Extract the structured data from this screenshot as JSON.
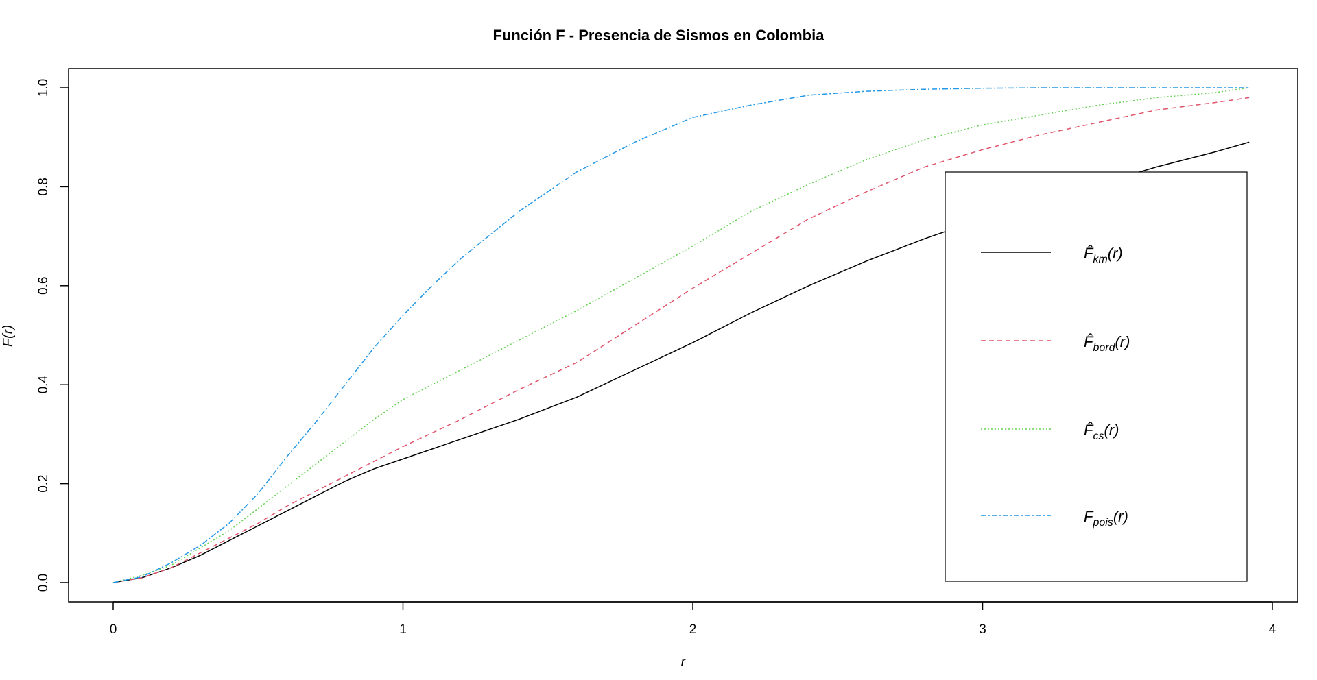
{
  "chart_data": {
    "type": "line",
    "title": "Función F - Presencia de Sismos en Colombia",
    "xlabel": "r",
    "ylabel": "F(r)",
    "xlim": [
      0,
      4
    ],
    "ylim": [
      0,
      1
    ],
    "x_ticks": [
      "0",
      "1",
      "2",
      "3",
      "4"
    ],
    "y_ticks": [
      "0.0",
      "0.2",
      "0.4",
      "0.6",
      "0.8",
      "1.0"
    ],
    "grid": false,
    "legend_position": "bottom-right",
    "series": [
      {
        "id": "km",
        "name": "F̂km(r)",
        "color": "#000000",
        "linestyle": "solid",
        "legend": {
          "base": "F̂",
          "sub": "km",
          "arg": "(r)"
        },
        "x": [
          0,
          0.1,
          0.2,
          0.3,
          0.4,
          0.5,
          0.6,
          0.7,
          0.8,
          0.9,
          1.0,
          1.2,
          1.4,
          1.6,
          1.8,
          2.0,
          2.2,
          2.4,
          2.6,
          2.8,
          3.0,
          3.2,
          3.4,
          3.6,
          3.8,
          3.92
        ],
        "y": [
          0,
          0.01,
          0.03,
          0.055,
          0.085,
          0.115,
          0.145,
          0.175,
          0.205,
          0.23,
          0.25,
          0.29,
          0.33,
          0.375,
          0.43,
          0.485,
          0.545,
          0.6,
          0.65,
          0.695,
          0.735,
          0.77,
          0.805,
          0.84,
          0.87,
          0.89
        ]
      },
      {
        "id": "bord",
        "name": "F̂bord(r)",
        "color": "#df536b",
        "linestyle": "dashed",
        "legend": {
          "base": "F̂",
          "sub": "bord",
          "arg": "(r)"
        },
        "x": [
          0,
          0.1,
          0.2,
          0.3,
          0.4,
          0.5,
          0.6,
          0.7,
          0.8,
          0.9,
          1.0,
          1.2,
          1.4,
          1.6,
          1.8,
          2.0,
          2.2,
          2.4,
          2.6,
          2.8,
          3.0,
          3.2,
          3.4,
          3.6,
          3.8,
          3.92
        ],
        "y": [
          0,
          0.01,
          0.03,
          0.06,
          0.09,
          0.12,
          0.155,
          0.185,
          0.215,
          0.245,
          0.275,
          0.33,
          0.39,
          0.445,
          0.52,
          0.595,
          0.665,
          0.735,
          0.79,
          0.84,
          0.875,
          0.905,
          0.93,
          0.955,
          0.97,
          0.98
        ]
      },
      {
        "id": "cs",
        "name": "F̂cs(r)",
        "color": "#61d04f",
        "linestyle": "dotted",
        "legend": {
          "base": "F̂",
          "sub": "cs",
          "arg": "(r)"
        },
        "x": [
          0,
          0.1,
          0.2,
          0.3,
          0.4,
          0.5,
          0.6,
          0.7,
          0.8,
          0.9,
          1.0,
          1.2,
          1.4,
          1.6,
          1.8,
          2.0,
          2.2,
          2.4,
          2.6,
          2.8,
          3.0,
          3.2,
          3.4,
          3.6,
          3.8,
          3.92
        ],
        "y": [
          0,
          0.015,
          0.035,
          0.07,
          0.105,
          0.15,
          0.195,
          0.24,
          0.285,
          0.33,
          0.37,
          0.43,
          0.49,
          0.55,
          0.615,
          0.68,
          0.75,
          0.805,
          0.855,
          0.895,
          0.925,
          0.945,
          0.965,
          0.98,
          0.99,
          1.0
        ]
      },
      {
        "id": "pois",
        "name": "Fpois(r)",
        "color": "#2297e6",
        "linestyle": "dashdot",
        "legend": {
          "base": "F",
          "sub": "pois",
          "arg": "(r)"
        },
        "x": [
          0,
          0.1,
          0.2,
          0.3,
          0.4,
          0.5,
          0.6,
          0.7,
          0.8,
          0.9,
          1.0,
          1.1,
          1.2,
          1.4,
          1.6,
          1.8,
          2.0,
          2.2,
          2.4,
          2.6,
          2.8,
          3.0,
          3.2,
          3.4,
          3.6,
          3.8,
          3.92
        ],
        "y": [
          0,
          0.012,
          0.04,
          0.075,
          0.12,
          0.18,
          0.255,
          0.325,
          0.4,
          0.475,
          0.54,
          0.6,
          0.655,
          0.75,
          0.83,
          0.89,
          0.94,
          0.965,
          0.985,
          0.993,
          0.997,
          0.999,
          1.0,
          1.0,
          1.0,
          1.0,
          1.0
        ]
      }
    ]
  }
}
